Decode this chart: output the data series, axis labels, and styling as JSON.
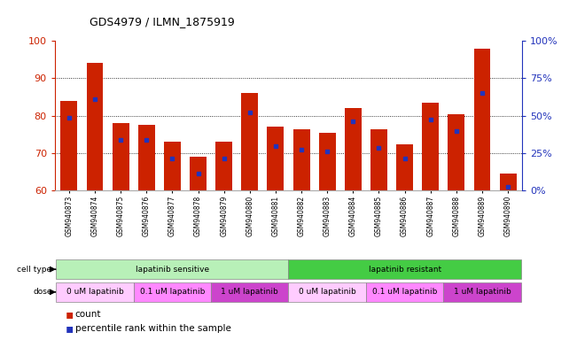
{
  "title": "GDS4979 / ILMN_1875919",
  "samples": [
    "GSM940873",
    "GSM940874",
    "GSM940875",
    "GSM940876",
    "GSM940877",
    "GSM940878",
    "GSM940879",
    "GSM940880",
    "GSM940881",
    "GSM940882",
    "GSM940883",
    "GSM940884",
    "GSM940885",
    "GSM940886",
    "GSM940887",
    "GSM940888",
    "GSM940889",
    "GSM940890"
  ],
  "bar_heights": [
    84,
    94,
    78,
    77.5,
    73,
    69,
    73,
    86,
    77,
    76.5,
    75.5,
    82,
    76.5,
    72.5,
    83.5,
    80.5,
    98,
    64.5
  ],
  "blue_markers": [
    79.5,
    84.5,
    73.5,
    73.5,
    68.5,
    64.5,
    68.5,
    81,
    72,
    71,
    70.5,
    78.5,
    71.5,
    68.5,
    79,
    76,
    86,
    61
  ],
  "ymin": 60,
  "ymax": 100,
  "yticks": [
    60,
    70,
    80,
    90,
    100
  ],
  "bar_color": "#cc2200",
  "blue_color": "#2233bb",
  "bg_color": "#ffffff",
  "cell_type_groups": [
    {
      "label": "lapatinib sensitive",
      "start": 0,
      "end": 9,
      "color": "#b8f0b8"
    },
    {
      "label": "lapatinib resistant",
      "start": 9,
      "end": 18,
      "color": "#44cc44"
    }
  ],
  "dose_groups": [
    {
      "label": "0 uM lapatinib",
      "start": 0,
      "end": 3,
      "color": "#ffccff"
    },
    {
      "label": "0.1 uM lapatinib",
      "start": 3,
      "end": 6,
      "color": "#ff88ff"
    },
    {
      "label": "1 uM lapatinib",
      "start": 6,
      "end": 9,
      "color": "#cc44cc"
    },
    {
      "label": "0 uM lapatinib",
      "start": 9,
      "end": 12,
      "color": "#ffccff"
    },
    {
      "label": "0.1 uM lapatinib",
      "start": 12,
      "end": 15,
      "color": "#ff88ff"
    },
    {
      "label": "1 uM lapatinib",
      "start": 15,
      "end": 18,
      "color": "#cc44cc"
    }
  ],
  "right_yticklabels": [
    "0%",
    "25%",
    "50%",
    "75%",
    "100%"
  ],
  "right_pct": [
    0,
    25,
    50,
    75,
    100
  ]
}
